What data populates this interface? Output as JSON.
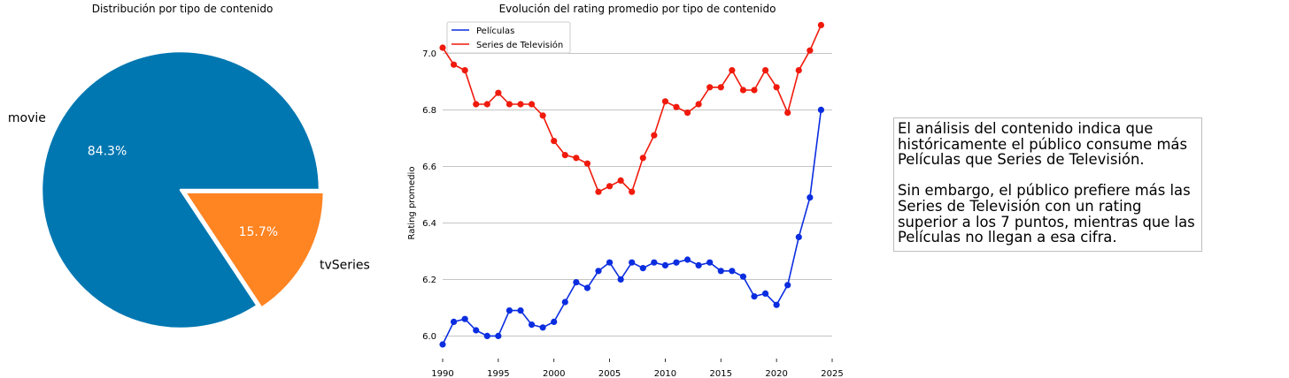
{
  "chart_data": [
    {
      "type": "pie",
      "title": "Distribución por tipo de contenido",
      "slices": [
        {
          "label": "movie",
          "value": 84.3,
          "pct_label": "84.3%",
          "color": "#0077b1"
        },
        {
          "label": "tvSeries",
          "value": 15.7,
          "pct_label": "15.7%",
          "color": "#ff8422"
        }
      ],
      "exploded": "tvSeries"
    },
    {
      "type": "line",
      "title": "Evolución del rating promedio por tipo de contenido",
      "xlabel": "",
      "ylabel": "Rating promedio",
      "xlim": [
        1990,
        2025
      ],
      "ylim": [
        5.92,
        7.12
      ],
      "xticks": [
        1990,
        1995,
        2000,
        2005,
        2010,
        2015,
        2020,
        2025
      ],
      "yticks": [
        "6.0",
        "6.2",
        "6.4",
        "6.6",
        "6.8",
        "7.0"
      ],
      "grid": "horizontal",
      "legend": "top-left",
      "x": [
        1990,
        1991,
        1992,
        1993,
        1994,
        1995,
        1996,
        1997,
        1998,
        1999,
        2000,
        2001,
        2002,
        2003,
        2004,
        2005,
        2006,
        2007,
        2008,
        2009,
        2010,
        2011,
        2012,
        2013,
        2014,
        2015,
        2016,
        2017,
        2018,
        2019,
        2020,
        2021,
        2022,
        2023,
        2024
      ],
      "series": [
        {
          "name": "Películas",
          "color": "#0b2de0",
          "values": [
            5.97,
            6.05,
            6.06,
            6.02,
            6.0,
            6.0,
            6.09,
            6.09,
            6.04,
            6.03,
            6.05,
            6.12,
            6.19,
            6.17,
            6.23,
            6.26,
            6.2,
            6.26,
            6.24,
            6.26,
            6.25,
            6.26,
            6.27,
            6.25,
            6.26,
            6.23,
            6.23,
            6.21,
            6.14,
            6.15,
            6.11,
            6.18,
            6.35,
            6.49,
            6.8
          ]
        },
        {
          "name": "Series de Televisión",
          "color": "#f01a0c",
          "values": [
            7.02,
            6.96,
            6.94,
            6.82,
            6.82,
            6.86,
            6.82,
            6.82,
            6.82,
            6.78,
            6.69,
            6.64,
            6.63,
            6.61,
            6.51,
            6.53,
            6.55,
            6.51,
            6.63,
            6.71,
            6.83,
            6.81,
            6.79,
            6.82,
            6.88,
            6.88,
            6.94,
            6.87,
            6.87,
            6.94,
            6.88,
            6.79,
            6.94,
            7.01,
            7.1
          ]
        }
      ]
    }
  ],
  "annotation": {
    "paragraph1": [
      "El análisis del contenido indica que",
      "históricamente el público consume más",
      "Películas que Series de Televisión."
    ],
    "paragraph2": [
      "Sin embargo, el público prefiere más las",
      "Series de Televisión con un rating",
      "superior a los 7 puntos, mientras que las",
      "Películas no llegan a esa cifra."
    ]
  }
}
